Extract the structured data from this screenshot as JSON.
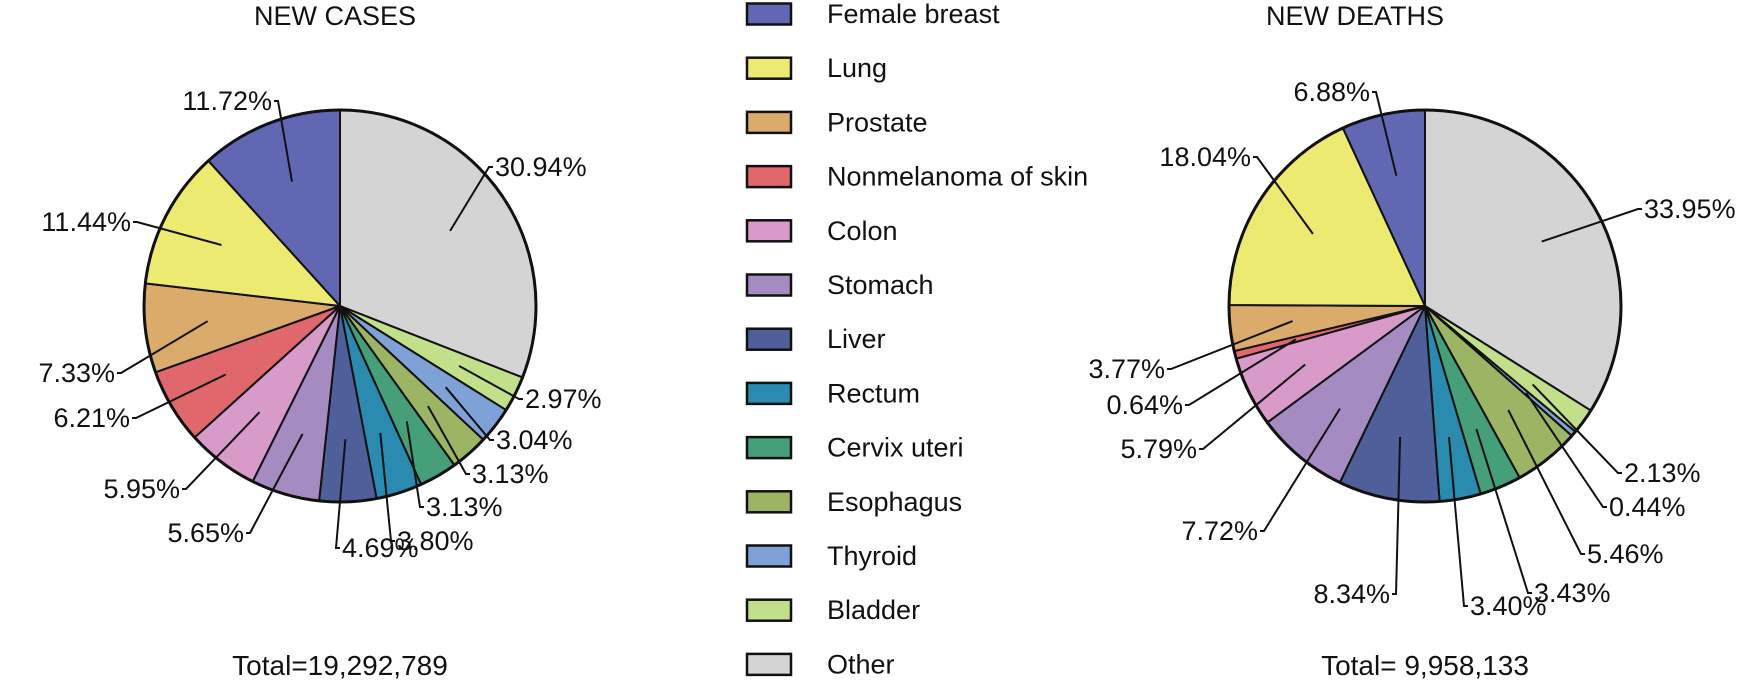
{
  "chart_data": {
    "type": "pie",
    "legend": {
      "placement": "center",
      "entries": [
        {
          "label": "Female breast",
          "color": "#6267b4"
        },
        {
          "label": "Lung",
          "color": "#ecea70"
        },
        {
          "label": "Prostate",
          "color": "#dbab6c"
        },
        {
          "label": "Nonmelanoma of skin",
          "color": "#e0686d"
        },
        {
          "label": "Colon",
          "color": "#d89ac8"
        },
        {
          "label": "Stomach",
          "color": "#a48cc2"
        },
        {
          "label": "Liver",
          "color": "#4f5f99"
        },
        {
          "label": "Rectum",
          "color": "#2a8ab0"
        },
        {
          "label": "Cervix uteri",
          "color": "#45a07a"
        },
        {
          "label": "Esophagus",
          "color": "#9cb565"
        },
        {
          "label": "Thyroid",
          "color": "#7ea2d8"
        },
        {
          "label": "Bladder",
          "color": "#c2e08a"
        },
        {
          "label": "Other",
          "color": "#d4d4d4"
        }
      ]
    },
    "charts": [
      {
        "title": "NEW CASES",
        "total": "Total=19,292,789",
        "slices": [
          {
            "category": "Other",
            "value": 30.94,
            "label": "30.94%"
          },
          {
            "category": "Bladder",
            "value": 2.97,
            "label": "2.97%"
          },
          {
            "category": "Thyroid",
            "value": 3.04,
            "label": "3.04%"
          },
          {
            "category": "Esophagus",
            "value": 3.13,
            "label": "3.13%"
          },
          {
            "category": "Cervix uteri",
            "value": 3.13,
            "label": "3.13%"
          },
          {
            "category": "Rectum",
            "value": 3.8,
            "label": "3.80%"
          },
          {
            "category": "Liver",
            "value": 4.69,
            "label": "4.69%"
          },
          {
            "category": "Stomach",
            "value": 5.65,
            "label": "5.65%"
          },
          {
            "category": "Colon",
            "value": 5.95,
            "label": "5.95%"
          },
          {
            "category": "Nonmelanoma of skin",
            "value": 6.21,
            "label": "6.21%"
          },
          {
            "category": "Prostate",
            "value": 7.33,
            "label": "7.33%"
          },
          {
            "category": "Lung",
            "value": 11.44,
            "label": "11.44%"
          },
          {
            "category": "Female breast",
            "value": 11.72,
            "label": "11.72%"
          }
        ]
      },
      {
        "title": "NEW DEATHS",
        "total": "Total= 9,958,133",
        "slices": [
          {
            "category": "Other",
            "value": 33.95,
            "label": "33.95%"
          },
          {
            "category": "Bladder",
            "value": 2.13,
            "label": "2.13%"
          },
          {
            "category": "Thyroid",
            "value": 0.44,
            "label": "0.44%"
          },
          {
            "category": "Esophagus",
            "value": 5.46,
            "label": "5.46%"
          },
          {
            "category": "Cervix uteri",
            "value": 3.43,
            "label": "3.43%"
          },
          {
            "category": "Rectum",
            "value": 3.4,
            "label": "3.40%"
          },
          {
            "category": "Liver",
            "value": 8.34,
            "label": "8.34%"
          },
          {
            "category": "Stomach",
            "value": 7.72,
            "label": "7.72%"
          },
          {
            "category": "Colon",
            "value": 5.79,
            "label": "5.79%"
          },
          {
            "category": "Nonmelanoma of skin",
            "value": 0.64,
            "label": "0.64%"
          },
          {
            "category": "Prostate",
            "value": 3.77,
            "label": "3.77%"
          },
          {
            "category": "Lung",
            "value": 18.04,
            "label": "18.04%"
          },
          {
            "category": "Female breast",
            "value": 6.88,
            "label": "6.88%"
          }
        ]
      }
    ]
  }
}
